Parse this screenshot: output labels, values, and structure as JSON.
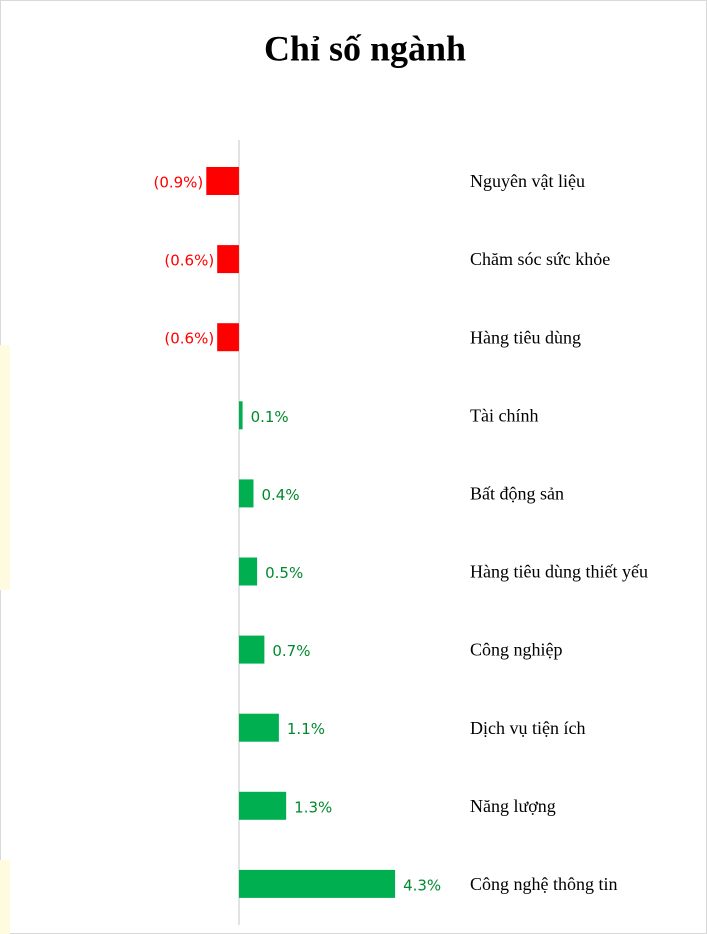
{
  "chart_data": {
    "type": "hbar",
    "title": "Chỉ số ngành",
    "categories": [
      "Nguyên vật liệu",
      "Chăm sóc sức khỏe",
      "Hàng tiêu dùng",
      "Tài chính",
      "Bất động sản",
      "Hàng tiêu dùng thiết yếu",
      "Công nghiệp",
      "Dịch vụ tiện ích",
      "Năng lượng",
      "Công nghệ thông tin"
    ],
    "values": [
      -0.9,
      -0.6,
      -0.6,
      0.1,
      0.4,
      0.5,
      0.7,
      1.1,
      1.3,
      4.3
    ],
    "value_labels": [
      "(0.9%)",
      "(0.6%)",
      "(0.6%)",
      "0.1%",
      "0.4%",
      "0.5%",
      "0.7%",
      "1.1%",
      "1.3%",
      "4.3%"
    ],
    "color": "#00b050",
    "negative_color": "#ff0000",
    "xlim": [
      -1.5,
      5
    ]
  }
}
